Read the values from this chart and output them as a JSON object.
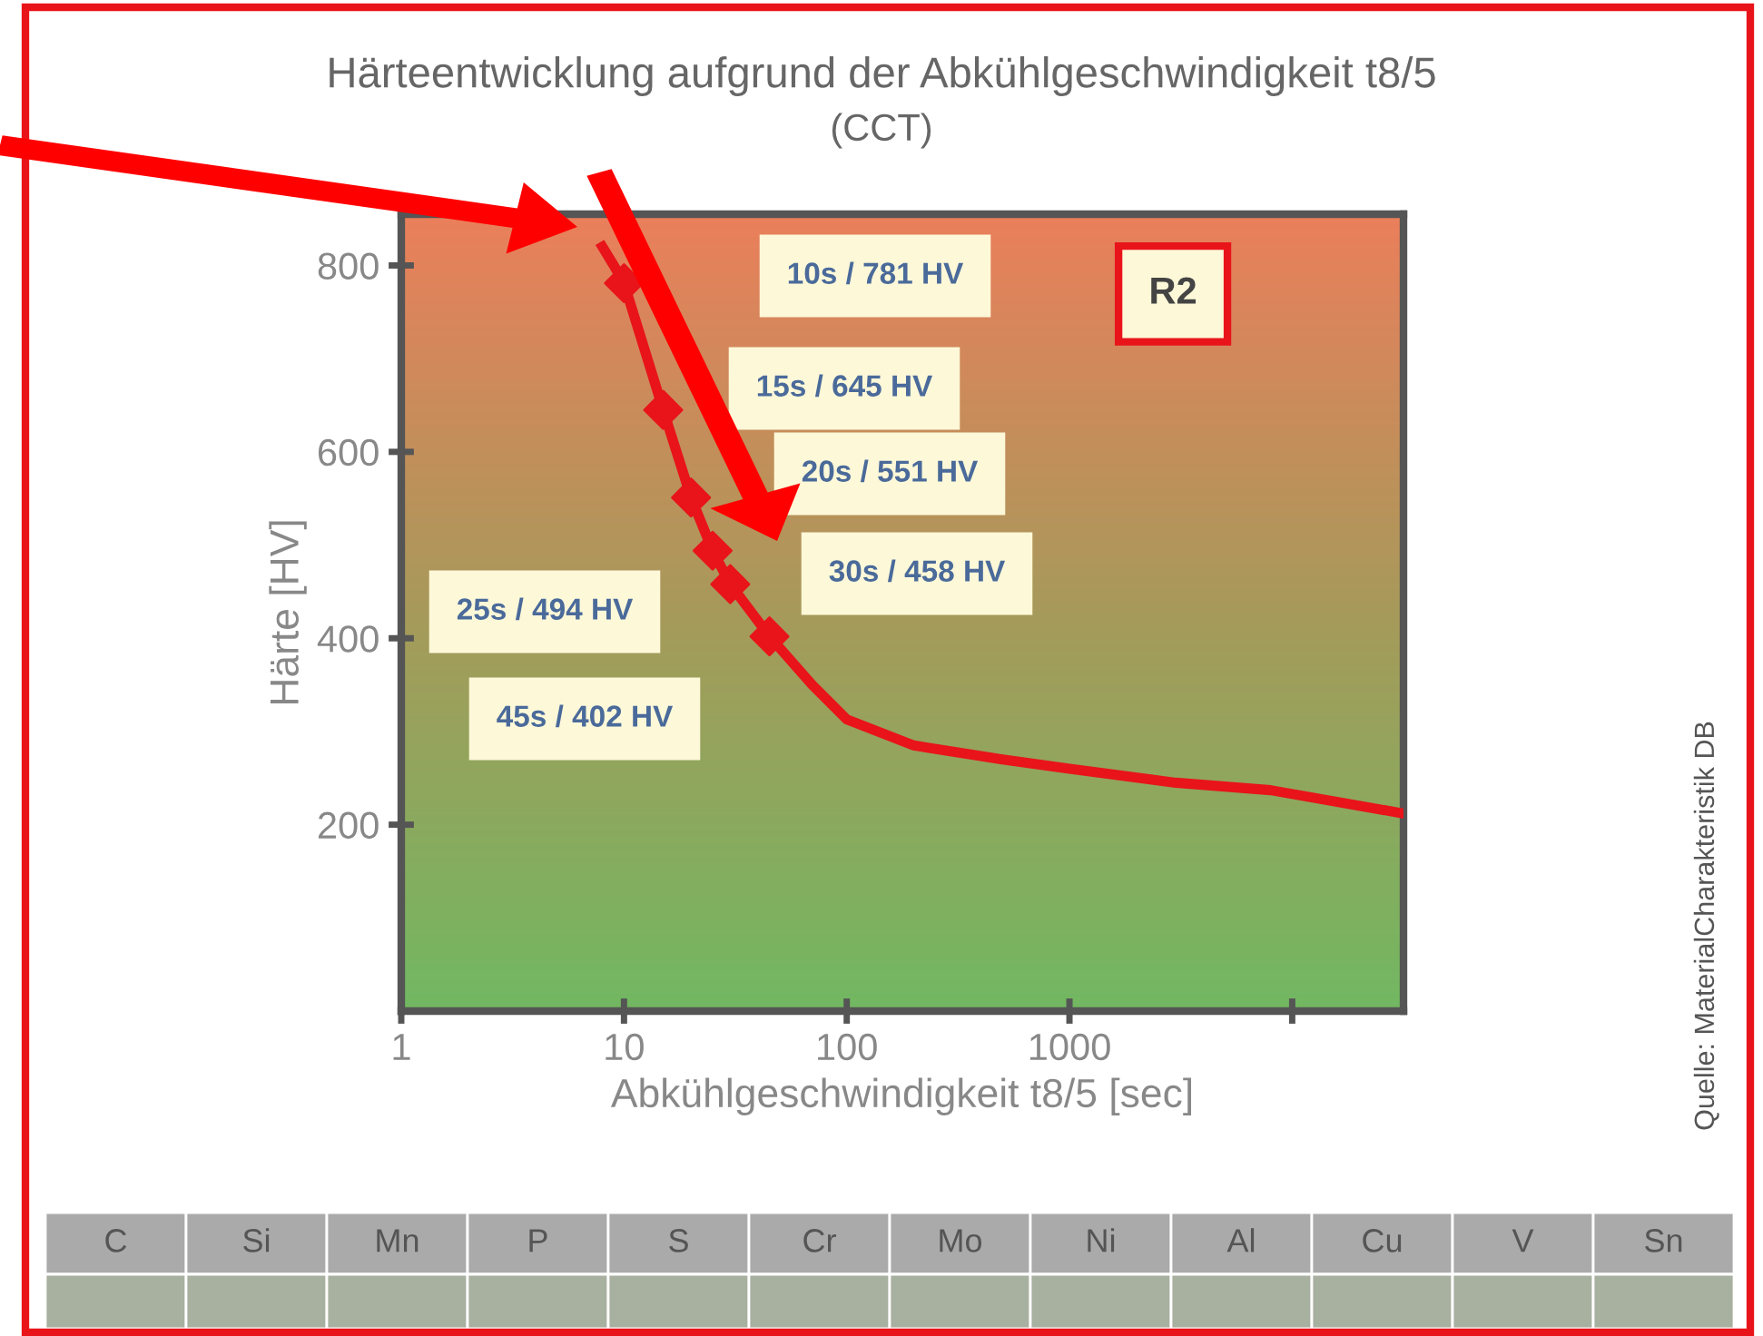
{
  "chart_data": {
    "type": "line",
    "title": "Härteentwicklung aufgrund der Abkühlgeschwindigkeit t8/5",
    "subtitle": "(CCT)",
    "xlabel": "Abkühlgeschwindigkeit t8/5 [sec]",
    "ylabel": "Härte [HV]",
    "log": "x",
    "xlim": [
      1,
      31600
    ],
    "xticks": [
      1,
      10,
      100,
      1000,
      {
        "value": 10000,
        "label": null
      }
    ],
    "ylim": [
      0,
      855
    ],
    "yticks": [
      200,
      400,
      600,
      800
    ],
    "grid": false,
    "series": [
      {
        "color": "#e8141a",
        "marker": "none",
        "x": [
          8,
          9,
          10,
          12,
          15,
          20,
          25,
          30,
          45,
          70,
          100,
          200,
          500,
          1000,
          3000,
          8000,
          31600
        ],
        "values": [
          820,
          800,
          781,
          720,
          645,
          551,
          494,
          458,
          402,
          350,
          313,
          285,
          270,
          260,
          245,
          237,
          212
        ]
      },
      {
        "type": "scatter",
        "color": "#e8141a",
        "marker": "diamond",
        "x": [
          10,
          15,
          20,
          25,
          30,
          45
        ],
        "values": [
          781,
          645,
          551,
          494,
          458,
          402
        ]
      }
    ],
    "annotations": [
      "10s / 781 HV",
      "15s / 645 HV",
      "20s / 551 HV",
      "25s / 494 HV",
      "30s / 458 HV",
      "45s / 402 HV",
      "R2",
      "Quelle: MaterialCharakteristik DB",
      "C",
      "Si",
      "Mn",
      "P",
      "S",
      "Cr",
      "Mo",
      "Ni",
      "Al",
      "Cu",
      "V",
      "Sn"
    ]
  }
}
